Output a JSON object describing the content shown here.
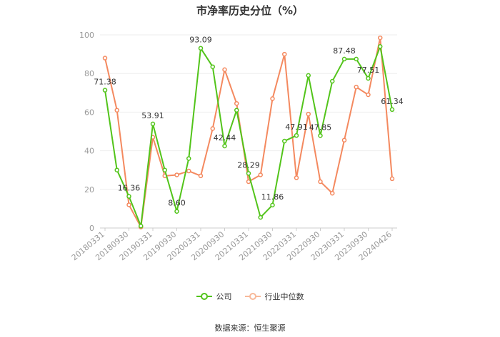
{
  "title": "市净率历史分位（%）",
  "source": "数据来源：恒生聚源",
  "chart_data": {
    "type": "line",
    "title": "市净率历史分位（%）",
    "ylim": [
      0,
      100
    ],
    "yticks": [
      0,
      20,
      40,
      60,
      80,
      100
    ],
    "grid": true,
    "legend_position": "bottom",
    "x_tick_labels": [
      "20180331",
      "20180930",
      "20190331",
      "20190930",
      "20200331",
      "20200930",
      "20210331",
      "20210930",
      "20220331",
      "20220930",
      "20230331",
      "20230930",
      "20240426"
    ],
    "series": [
      {
        "name": "公司",
        "color": "#52c41a",
        "values": [
          71.38,
          30,
          16.36,
          1,
          53.91,
          30,
          8.6,
          36,
          93.09,
          83.5,
          42.44,
          61,
          28.29,
          5.5,
          11.86,
          45,
          47.91,
          79,
          47.85,
          76,
          87.48,
          87.5,
          77.51,
          94,
          61.34
        ],
        "labels": {
          "0": "71.38",
          "2": "16.36",
          "4": "53.91",
          "6": "8.60",
          "8": "93.09",
          "10": "42.44",
          "12": "28.29",
          "14": "11.86",
          "16": "47.91",
          "18": "47.85",
          "20": "87.48",
          "22": "77.51",
          "24": "61.34"
        }
      },
      {
        "name": "行业中位数",
        "color": "#f4895f",
        "values": [
          88,
          61,
          12,
          0.5,
          47,
          27,
          27.5,
          29.5,
          27,
          51.5,
          82,
          64.5,
          24,
          27.5,
          67,
          90,
          26,
          59,
          24,
          18,
          45.5,
          73,
          69,
          98.5,
          25.5
        ],
        "labels": {}
      }
    ]
  }
}
